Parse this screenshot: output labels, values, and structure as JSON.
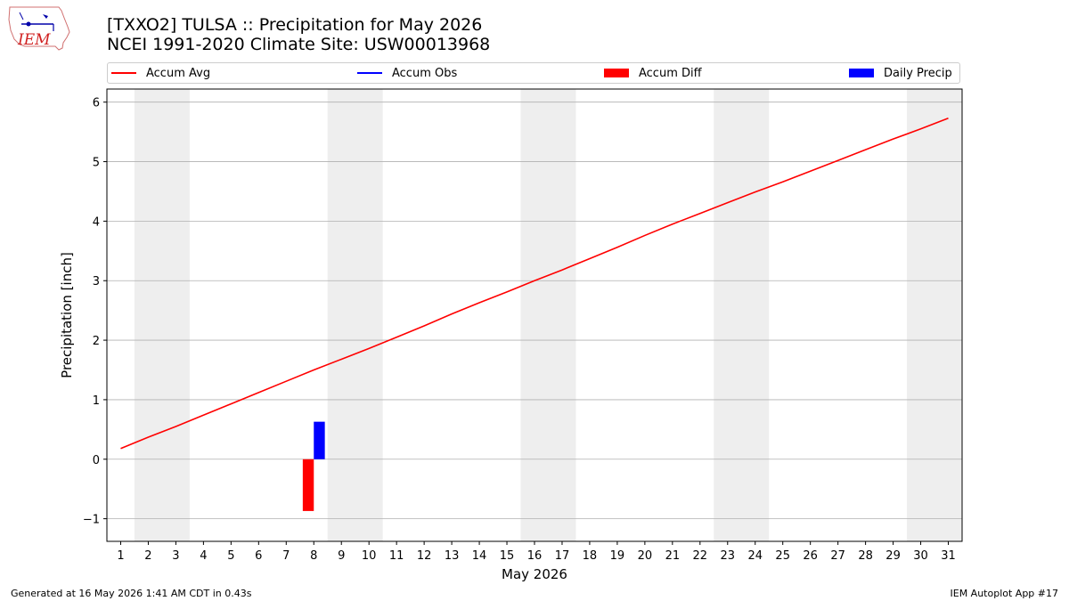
{
  "header": {
    "title_line1": "[TXXO2] TULSA :: Precipitation for May 2026",
    "title_line2": "NCEI 1991-2020 Climate Site: USW00013968",
    "logo_text": "IEM"
  },
  "legend": {
    "items": [
      {
        "label": "Accum Avg",
        "color": "#ff0000",
        "kind": "line"
      },
      {
        "label": "Accum Obs",
        "color": "#0000ff",
        "kind": "line"
      },
      {
        "label": "Accum Diff",
        "color": "#ff0000",
        "kind": "patch"
      },
      {
        "label": "Daily Precip",
        "color": "#0000ff",
        "kind": "patch"
      }
    ]
  },
  "footer": {
    "left": "Generated at 16 May 2026 1:41 AM CDT in 0.43s",
    "right": "IEM Autoplot App #17"
  },
  "chart_data": {
    "type": "line",
    "title": "[TXXO2] TULSA :: Precipitation for May 2026",
    "xlabel": "May 2026",
    "ylabel": "Precipitation [inch]",
    "xlim": [
      0.5,
      31.5
    ],
    "ylim": [
      -1.38,
      6.22
    ],
    "x_ticks": [
      1,
      2,
      3,
      4,
      5,
      6,
      7,
      8,
      9,
      10,
      11,
      12,
      13,
      14,
      15,
      16,
      17,
      18,
      19,
      20,
      21,
      22,
      23,
      24,
      25,
      26,
      27,
      28,
      29,
      30,
      31
    ],
    "y_ticks": [
      -1,
      0,
      1,
      2,
      3,
      4,
      5,
      6
    ],
    "grid": "y",
    "legend_position": "top",
    "weekend_bands": [
      [
        1.5,
        3.5
      ],
      [
        8.5,
        10.5
      ],
      [
        15.5,
        17.5
      ],
      [
        22.5,
        24.5
      ],
      [
        29.5,
        31.5
      ]
    ],
    "band_color": "#eeeeee",
    "series": [
      {
        "name": "Accum Avg",
        "kind": "line",
        "color": "#ff0000",
        "x": [
          1,
          2,
          3,
          4,
          5,
          6,
          7,
          8,
          9,
          10,
          11,
          12,
          13,
          14,
          15,
          16,
          17,
          18,
          19,
          20,
          21,
          22,
          23,
          24,
          25,
          26,
          27,
          28,
          29,
          30,
          31
        ],
        "values": [
          0.18,
          0.37,
          0.55,
          0.74,
          0.93,
          1.12,
          1.31,
          1.5,
          1.68,
          1.86,
          2.05,
          2.24,
          2.44,
          2.63,
          2.81,
          3.0,
          3.18,
          3.37,
          3.56,
          3.76,
          3.95,
          4.13,
          4.31,
          4.49,
          4.66,
          4.84,
          5.02,
          5.2,
          5.38,
          5.55,
          5.73
        ]
      },
      {
        "name": "Accum Diff",
        "kind": "bar",
        "color": "#ff0000",
        "x": [
          8
        ],
        "offset": -0.2,
        "values": [
          -0.87
        ]
      },
      {
        "name": "Daily Precip",
        "kind": "bar",
        "color": "#0000ff",
        "x": [
          8
        ],
        "offset": 0.2,
        "values": [
          0.63
        ]
      }
    ]
  }
}
